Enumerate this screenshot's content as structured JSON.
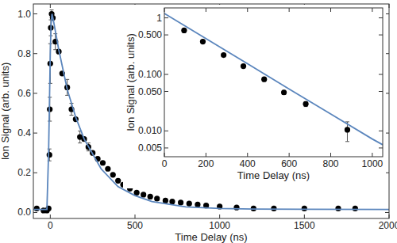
{
  "chart_data": [
    {
      "type": "scatter",
      "xlabel": "Time Delay (ns)",
      "ylabel": "Ion Signal (arb. units)",
      "xlim": [
        -100,
        2000
      ],
      "xticks": [
        0,
        500,
        1000,
        1500,
        2000
      ],
      "ylim": [
        -0.03,
        1.05
      ],
      "yticks": [
        {
          "value": 0,
          "label": "0.0"
        },
        0.2,
        0.4,
        0.6,
        0.8,
        {
          "value": 1,
          "label": "1.0"
        }
      ],
      "grid": false,
      "series": [
        {
          "type": "scatter",
          "marker": "circle",
          "color": "#000000",
          "x": [
            -80,
            -40,
            -20,
            -10,
            -5,
            -3,
            0,
            3,
            8,
            15,
            30,
            50,
            70,
            100,
            125,
            150,
            175,
            200,
            225,
            250,
            280,
            310,
            340,
            370,
            400,
            430,
            470,
            510,
            550,
            590,
            630,
            680,
            720,
            770,
            820,
            870,
            920,
            1000,
            1100,
            1200,
            1320,
            1500,
            1700,
            1800
          ],
          "values": [
            0.02,
            0.01,
            0.01,
            0.02,
            0.29,
            0.52,
            0.75,
            0.93,
            1.0,
            0.98,
            0.86,
            0.81,
            0.7,
            0.63,
            0.52,
            0.47,
            0.38,
            0.37,
            0.33,
            0.3,
            0.27,
            0.25,
            0.22,
            0.19,
            0.16,
            0.14,
            0.12,
            0.1,
            0.09,
            0.08,
            0.07,
            0.06,
            0.055,
            0.05,
            0.045,
            0.04,
            0.035,
            0.03,
            0.025,
            0.02,
            0.02,
            0.02,
            0.02,
            0.02
          ],
          "errors": [
            null,
            null,
            null,
            null,
            0.03,
            0.06,
            0.1,
            0.04,
            0.02,
            null,
            0.04,
            null,
            null,
            0.04,
            0.03,
            null,
            0.03,
            null,
            0.02,
            null,
            null,
            null,
            null,
            null,
            null,
            null,
            null,
            null,
            null,
            null,
            null,
            null,
            null,
            null,
            null,
            null,
            null,
            null,
            null,
            null,
            null,
            null,
            null,
            null
          ]
        },
        {
          "type": "line",
          "line_style": "solid",
          "color": "#5b86bd",
          "x": [
            -100,
            -20,
            -10,
            0,
            5,
            10,
            20,
            50,
            100,
            150,
            200,
            300,
            400,
            500,
            600,
            800,
            1000,
            1200,
            1500,
            2000
          ],
          "values": [
            0.015,
            0.015,
            0.3,
            0.8,
            0.95,
            1.0,
            0.96,
            0.82,
            0.62,
            0.48,
            0.37,
            0.22,
            0.13,
            0.085,
            0.055,
            0.028,
            0.02,
            0.017,
            0.016,
            0.015
          ]
        }
      ]
    },
    {
      "type": "scatter",
      "xlabel": "Time Delay (ns)",
      "ylabel": "Ion Signal (arb. units)",
      "log": "y",
      "xlim": [
        0,
        1050
      ],
      "xticks": [
        0,
        200,
        400,
        600,
        800,
        1000
      ],
      "ylim": [
        0.0035,
        1.5
      ],
      "yticks": [
        0.005,
        {
          "value": 0.01,
          "label": "0.010"
        },
        {
          "value": 0.05,
          "label": "0.050"
        },
        {
          "value": 0.1,
          "label": "0.100"
        },
        {
          "value": 0.5,
          "label": "0.500"
        },
        1
      ],
      "grid": false,
      "series": [
        {
          "type": "scatter",
          "marker": "circle",
          "color": "#000000",
          "x": [
            95,
            185,
            285,
            380,
            480,
            575,
            680,
            880
          ],
          "values": [
            0.6,
            0.38,
            0.22,
            0.14,
            0.082,
            0.048,
            0.03,
            0.0105
          ],
          "errors": [
            0.02,
            0.02,
            0.01,
            0.006,
            0.004,
            0.004,
            0.003,
            0.004
          ]
        },
        {
          "type": "line",
          "line_style": "solid",
          "color": "#5b86bd",
          "x": [
            0,
            200,
            400,
            600,
            800,
            1000,
            1050
          ],
          "values": [
            1.2,
            0.43,
            0.155,
            0.055,
            0.02,
            0.0072,
            0.0057
          ]
        }
      ]
    }
  ]
}
